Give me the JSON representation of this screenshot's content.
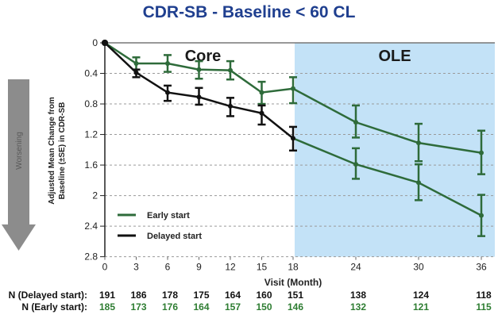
{
  "title": "CDR-SB - Baseline < 60 CL",
  "worsening_arrow_label": "Worsening",
  "chart_data": {
    "type": "line",
    "title": "CDR-SB - Baseline < 60 CL",
    "xlabel": "Visit (Month)",
    "ylabel": "Adjusted Mean Change from Baseline (±SE) in CDR-SB",
    "ylabel_lines": [
      "Adjusted Mean Change from",
      "Baseline (±SE) in CDR-SB"
    ],
    "y_inverted": true,
    "ylim": [
      0,
      2.8
    ],
    "yticks": [
      0,
      0.4,
      0.8,
      1.2,
      1.6,
      2,
      2.4,
      2.8
    ],
    "ytick_labels": [
      "0",
      "0.4",
      "0.8",
      "1.2",
      "1.6",
      "2",
      "2.4",
      "2.8"
    ],
    "x": [
      0,
      3,
      6,
      9,
      12,
      15,
      18,
      24,
      30,
      36
    ],
    "xtick_labels": [
      "0",
      "3",
      "6",
      "9",
      "12",
      "15",
      "18",
      "24",
      "30",
      "36"
    ],
    "grid": "horizontal dashed",
    "regions": [
      {
        "label": "Core",
        "x_start": 0,
        "x_end": 18,
        "color": "#ffffff"
      },
      {
        "label": "OLE",
        "x_start": 18,
        "x_end": 36,
        "color": "#c3e2f7"
      }
    ],
    "legend_position": "bottom-left",
    "series": [
      {
        "name": "Early start",
        "color": "#2e6b3a",
        "values": [
          0,
          0.27,
          0.27,
          0.35,
          0.36,
          0.65,
          0.6,
          1.04,
          1.31,
          1.44
        ],
        "se_low": [
          0,
          0.19,
          0.16,
          0.24,
          0.24,
          0.51,
          0.45,
          0.82,
          1.06,
          1.15
        ],
        "se_high": [
          0,
          0.35,
          0.38,
          0.47,
          0.48,
          0.8,
          0.79,
          1.24,
          1.55,
          1.72
        ]
      },
      {
        "name": "Delayed start",
        "color": "#111111",
        "ole_color": "#2e6b3a",
        "values": [
          0,
          0.39,
          0.65,
          0.71,
          0.83,
          0.92,
          1.25,
          1.59,
          1.83,
          2.26
        ],
        "se_low": [
          0,
          0.35,
          0.56,
          0.59,
          0.72,
          0.82,
          1.1,
          1.38,
          1.59,
          1.99
        ],
        "se_high": [
          0,
          0.45,
          0.76,
          0.81,
          0.96,
          1.07,
          1.41,
          1.78,
          2.06,
          2.53
        ]
      }
    ],
    "n_table": {
      "rows": [
        {
          "label": "N (Delayed start):",
          "key": "delayed",
          "color": "#111111",
          "values": [
            191,
            186,
            178,
            175,
            164,
            160,
            151,
            138,
            124,
            118
          ]
        },
        {
          "label": "N (Early start):",
          "key": "early",
          "color": "#2e7d32",
          "values": [
            185,
            173,
            176,
            164,
            157,
            150,
            146,
            132,
            121,
            115
          ]
        }
      ]
    }
  }
}
